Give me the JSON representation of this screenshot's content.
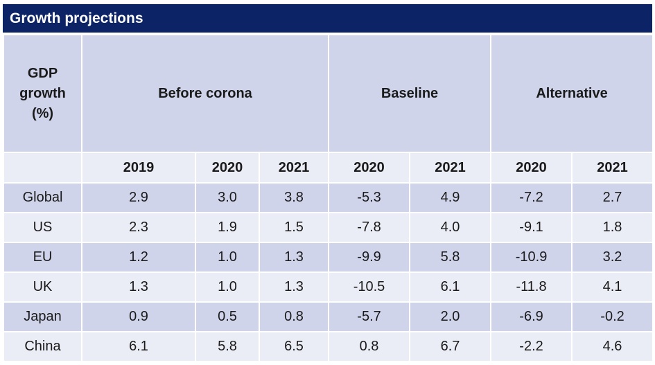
{
  "title": "Growth projections",
  "header": {
    "row_label": [
      "GDP",
      "growth",
      "(%)"
    ],
    "groups": [
      "Before corona",
      "Baseline",
      "Alternative"
    ],
    "years": [
      "2019",
      "2020",
      "2021",
      "2020",
      "2021",
      "2020",
      "2021"
    ]
  },
  "chart_data": {
    "type": "table",
    "title": "Growth projections",
    "columns": [
      {
        "group": "Before corona",
        "year": "2019"
      },
      {
        "group": "Before corona",
        "year": "2020"
      },
      {
        "group": "Before corona",
        "year": "2021"
      },
      {
        "group": "Baseline",
        "year": "2020"
      },
      {
        "group": "Baseline",
        "year": "2021"
      },
      {
        "group": "Alternative",
        "year": "2020"
      },
      {
        "group": "Alternative",
        "year": "2021"
      }
    ],
    "rows": [
      {
        "label": "Global",
        "values": [
          "2.9",
          "3.0",
          "3.8",
          "-5.3",
          "4.9",
          "-7.2",
          "2.7"
        ]
      },
      {
        "label": "US",
        "values": [
          "2.3",
          "1.9",
          "1.5",
          "-7.8",
          "4.0",
          "-9.1",
          "1.8"
        ]
      },
      {
        "label": "EU",
        "values": [
          "1.2",
          "1.0",
          "1.3",
          "-9.9",
          "5.8",
          "-10.9",
          "3.2"
        ]
      },
      {
        "label": "UK",
        "values": [
          "1.3",
          "1.0",
          "1.3",
          "-10.5",
          "6.1",
          "-11.8",
          "4.1"
        ]
      },
      {
        "label": "Japan",
        "values": [
          "0.9",
          "0.5",
          "0.8",
          "-5.7",
          "2.0",
          "-6.9",
          "-0.2"
        ]
      },
      {
        "label": "China",
        "values": [
          "6.1",
          "5.8",
          "6.5",
          "0.8",
          "6.7",
          "-2.2",
          "4.6"
        ]
      }
    ]
  },
  "colors": {
    "title_bar": "#0c2466",
    "dark_row": "#d0d4eb",
    "light_row": "#ebedf6"
  }
}
